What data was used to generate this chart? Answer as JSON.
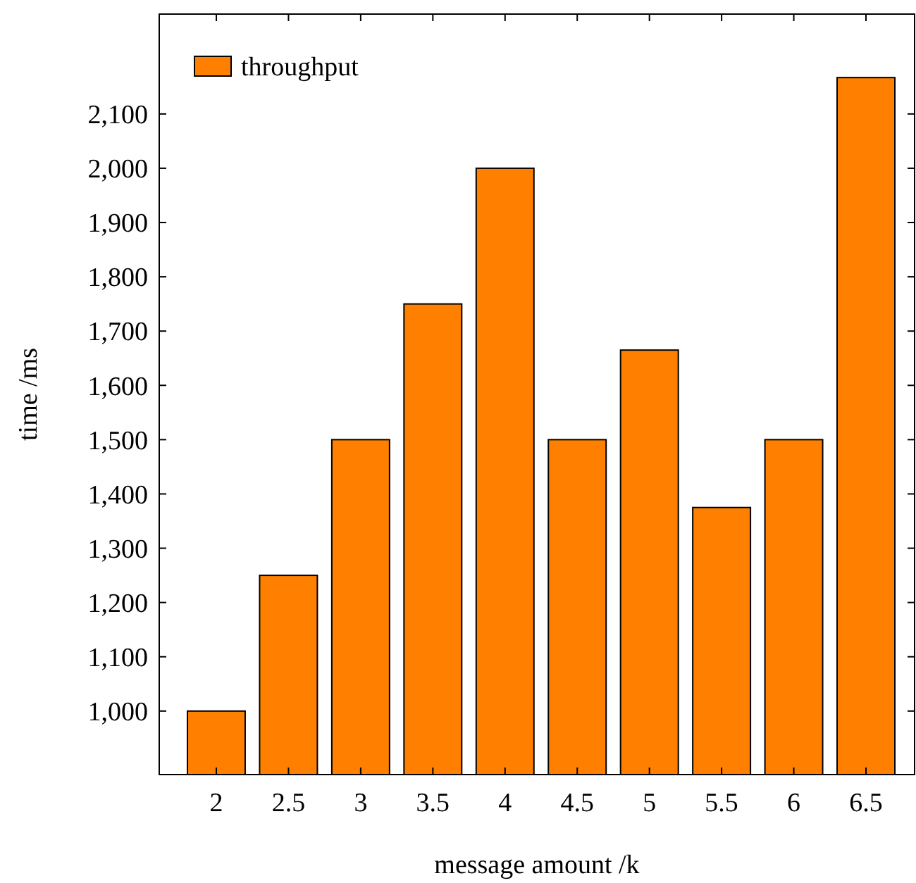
{
  "chart_data": {
    "type": "bar",
    "xlabel": "message amount /k",
    "ylabel": "time /ms",
    "categories": [
      "2",
      "2.5",
      "3",
      "3.5",
      "4",
      "4.5",
      "5",
      "5.5",
      "6",
      "6.5"
    ],
    "series": [
      {
        "name": "throughput",
        "color": "#ff8000",
        "values": [
          1000,
          1250,
          1500,
          1750,
          2000,
          1500,
          1665,
          1375,
          1500,
          2167
        ]
      }
    ],
    "ylim": [
      883,
      2284
    ],
    "yticks": [
      {
        "value": 1000,
        "label": "1,000"
      },
      {
        "value": 1100,
        "label": "1,100"
      },
      {
        "value": 1200,
        "label": "1,200"
      },
      {
        "value": 1300,
        "label": "1,300"
      },
      {
        "value": 1400,
        "label": "1,400"
      },
      {
        "value": 1500,
        "label": "1,500"
      },
      {
        "value": 1600,
        "label": "1,600"
      },
      {
        "value": 1700,
        "label": "1,700"
      },
      {
        "value": 1800,
        "label": "1,800"
      },
      {
        "value": 1900,
        "label": "1,900"
      },
      {
        "value": 2000,
        "label": "2,000"
      },
      {
        "value": 2100,
        "label": "2,100"
      }
    ],
    "legend": "top left",
    "grid": false
  }
}
